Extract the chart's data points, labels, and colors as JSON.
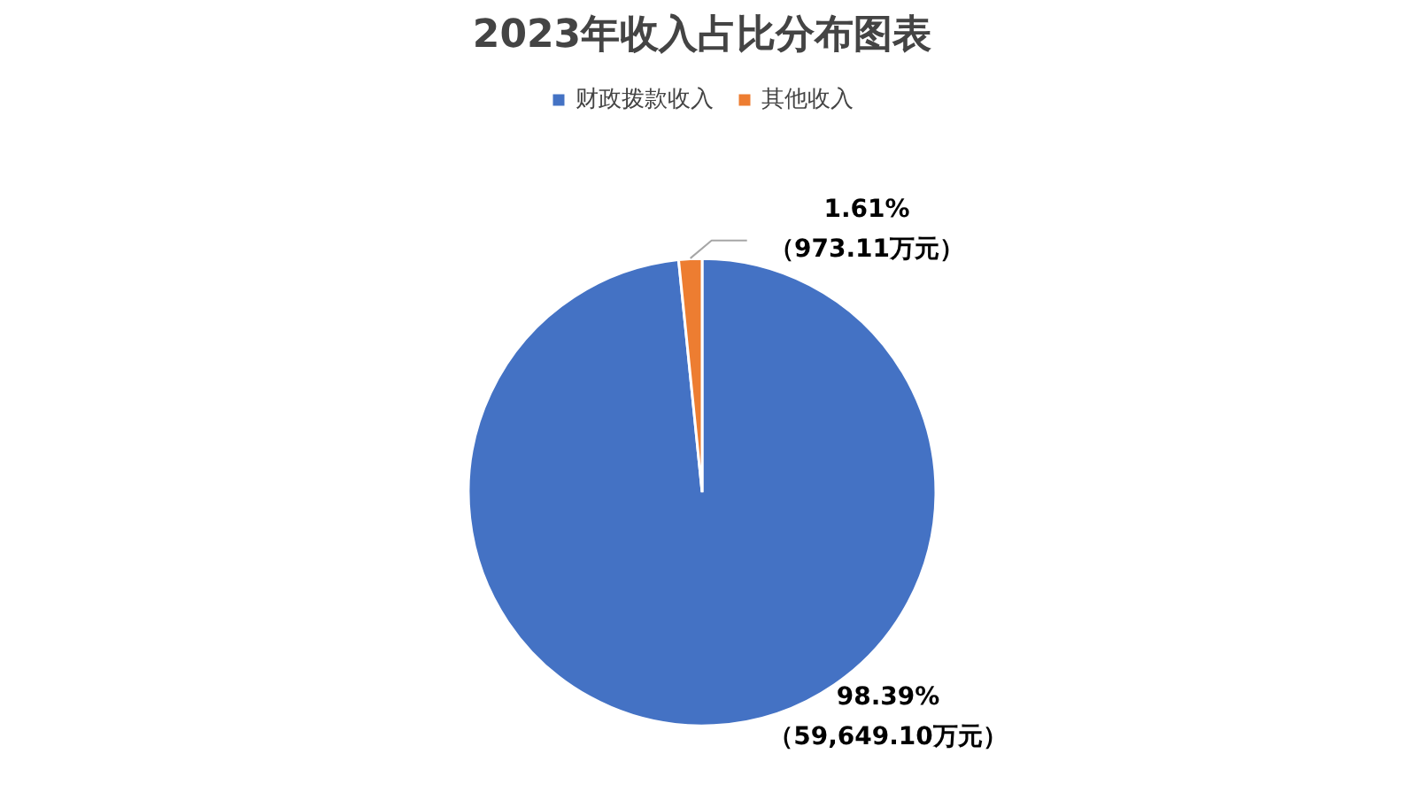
{
  "chart_data": {
    "type": "pie",
    "title": "2023年收入占比分布图表",
    "categories": [
      "财政拨款收入",
      "其他收入"
    ],
    "values": [
      59649.1,
      973.11
    ],
    "colors": [
      "#4472c4",
      "#ed7d31"
    ],
    "value_labels": [
      "98.39%\n（59,649.10万元）",
      "1.61%\n（973.11万元）"
    ],
    "legend": "top"
  }
}
